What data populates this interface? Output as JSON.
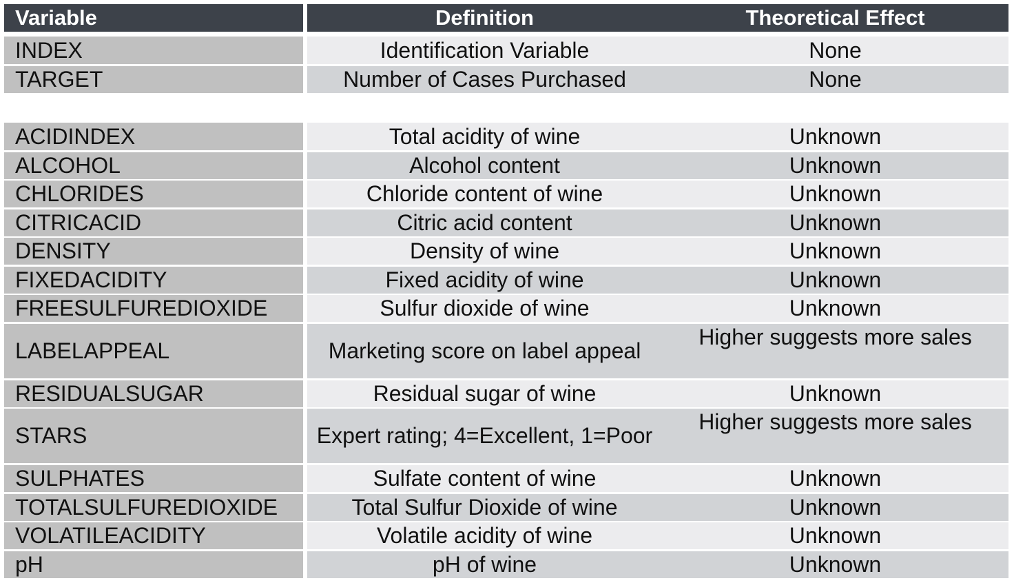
{
  "header": {
    "variable": "Variable",
    "definition": "Definition",
    "effect": "Theoretical Effect"
  },
  "group1": [
    {
      "variable": "INDEX",
      "definition": "Identification Variable",
      "effect": "None"
    },
    {
      "variable": "TARGET",
      "definition": "Number of Cases Purchased",
      "effect": "None"
    }
  ],
  "group2": [
    {
      "variable": "ACIDINDEX",
      "definition": "Total acidity of wine",
      "effect": "Unknown"
    },
    {
      "variable": "ALCOHOL",
      "definition": "Alcohol content",
      "effect": "Unknown"
    },
    {
      "variable": "CHLORIDES",
      "definition": "Chloride content of wine",
      "effect": "Unknown"
    },
    {
      "variable": "CITRICACID",
      "definition": "Citric acid content",
      "effect": "Unknown"
    },
    {
      "variable": "DENSITY",
      "definition": "Density of wine",
      "effect": "Unknown"
    },
    {
      "variable": "FIXEDACIDITY",
      "definition": "Fixed acidity of wine",
      "effect": "Unknown"
    },
    {
      "variable": "FREESULFUREDIOXIDE",
      "definition": "Sulfur dioxide of wine",
      "effect": "Unknown"
    },
    {
      "variable": "LABELAPPEAL",
      "definition": "Marketing score on label appeal",
      "effect": "Higher suggests more sales"
    },
    {
      "variable": "RESIDUALSUGAR",
      "definition": "Residual sugar of wine",
      "effect": "Unknown"
    },
    {
      "variable": "STARS",
      "definition": "Expert rating; 4=Excellent, 1=Poor",
      "effect": "Higher suggests more sales"
    },
    {
      "variable": "SULPHATES",
      "definition": "Sulfate content of wine",
      "effect": "Unknown"
    },
    {
      "variable": "TOTALSULFUREDIOXIDE",
      "definition": "Total Sulfur Dioxide of wine",
      "effect": "Unknown"
    },
    {
      "variable": "VOLATILEACIDITY",
      "definition": "Volatile acidity of wine",
      "effect": "Unknown"
    },
    {
      "variable": "pH",
      "definition": "pH of wine",
      "effect": "Unknown"
    }
  ]
}
